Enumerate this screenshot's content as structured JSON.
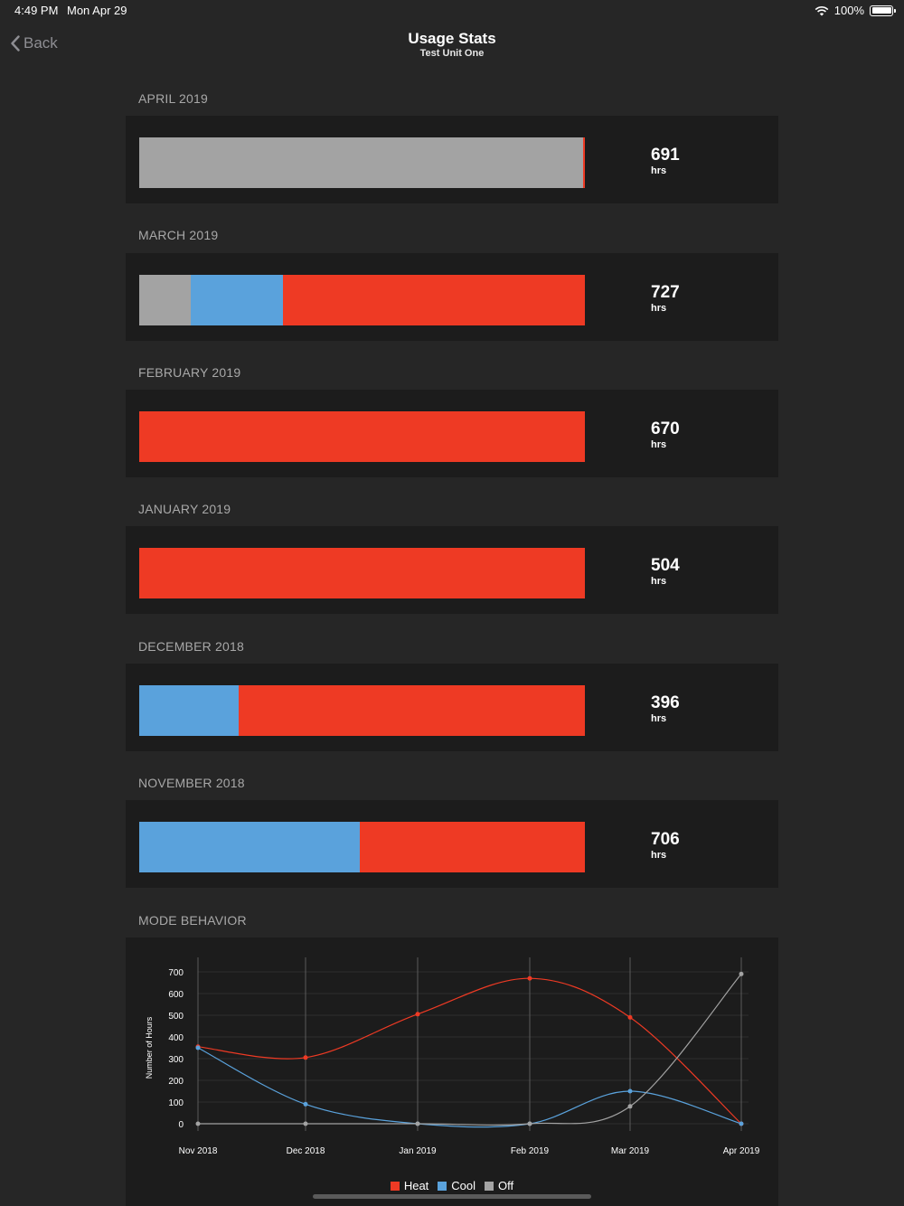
{
  "status_bar": {
    "time": "4:49 PM",
    "date": "Mon Apr 29",
    "battery": "100%"
  },
  "nav": {
    "back_label": "Back",
    "title": "Usage Stats",
    "subtitle": "Test Unit One"
  },
  "colors": {
    "heat": "#ee3a24",
    "cool": "#5aa2dc",
    "off": "#a3a3a3",
    "background": "#262626",
    "card": "#1c1c1c"
  },
  "months": [
    {
      "label": "APRIL 2019",
      "hours": "691",
      "unit": "hrs",
      "split": {
        "off": 0.996,
        "cool": 0,
        "heat": 0.004
      }
    },
    {
      "label": "MARCH 2019",
      "hours": "727",
      "unit": "hrs",
      "split": {
        "off": 0.115,
        "cool": 0.207,
        "heat": 0.678
      }
    },
    {
      "label": "FEBRUARY 2019",
      "hours": "670",
      "unit": "hrs",
      "split": {
        "off": 0,
        "cool": 0,
        "heat": 1
      }
    },
    {
      "label": "JANUARY 2019",
      "hours": "504",
      "unit": "hrs",
      "split": {
        "off": 0,
        "cool": 0,
        "heat": 1
      }
    },
    {
      "label": "DECEMBER 2018",
      "hours": "396",
      "unit": "hrs",
      "split": {
        "off": 0,
        "cool": 0.224,
        "heat": 0.776
      }
    },
    {
      "label": "NOVEMBER 2018",
      "hours": "706",
      "unit": "hrs",
      "split": {
        "off": 0,
        "cool": 0.494,
        "heat": 0.506
      }
    }
  ],
  "mode_behavior": {
    "label": "MODE BEHAVIOR"
  },
  "chart_data": {
    "type": "line",
    "title": "",
    "xlabel": "",
    "ylabel": "Number of Hours",
    "categories": [
      "Nov 2018",
      "Dec 2018",
      "Jan 2019",
      "Feb 2019",
      "Mar 2019",
      "Apr 2019"
    ],
    "yticks": [
      0,
      100,
      200,
      300,
      400,
      500,
      600,
      700
    ],
    "ylim": [
      0,
      700
    ],
    "grid": "vertical",
    "legend_position": "bottom",
    "series": [
      {
        "name": "Heat",
        "color": "#ee3a24",
        "values": [
          355,
          305,
          505,
          670,
          490,
          0
        ]
      },
      {
        "name": "Cool",
        "color": "#5aa2dc",
        "values": [
          350,
          90,
          0,
          0,
          150,
          0
        ]
      },
      {
        "name": "Off",
        "color": "#a3a3a3",
        "values": [
          0,
          0,
          0,
          0,
          80,
          690
        ]
      }
    ]
  }
}
